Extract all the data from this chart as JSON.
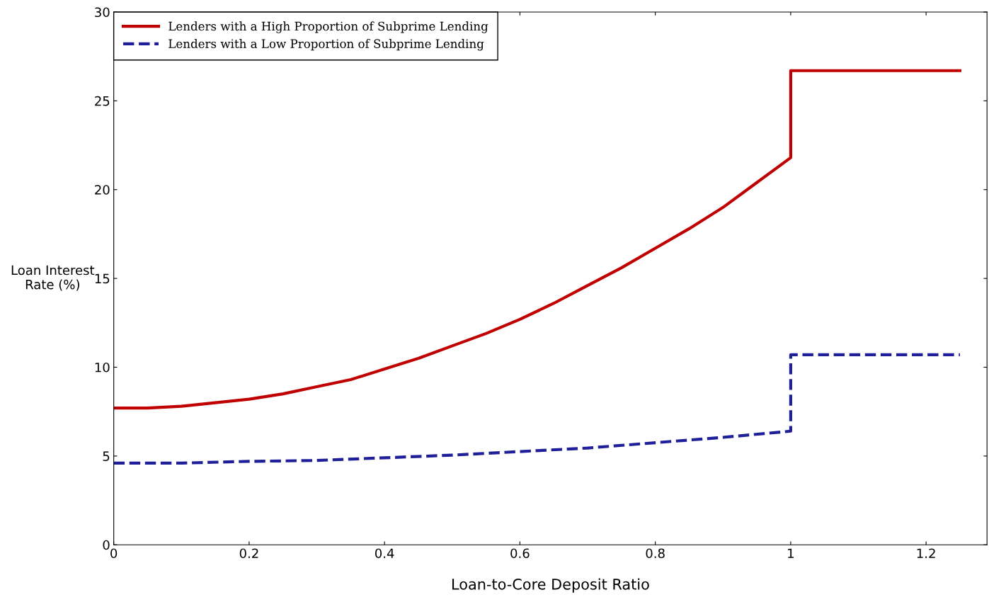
{
  "chart_data": {
    "type": "line",
    "xlabel": "Loan-to-Core Deposit Ratio",
    "ylabel": "Loan Interest\nRate (%)",
    "xlim": [
      0,
      1.29
    ],
    "xticks": [
      0,
      0.2,
      0.4,
      0.6,
      0.8,
      1,
      1.2
    ],
    "ylim": [
      0,
      30
    ],
    "yticks": [
      0,
      5,
      10,
      15,
      20,
      25,
      30
    ],
    "grid": false,
    "legend": "top left",
    "marker": "none",
    "series": [
      {
        "name": "Lenders with a High Proportion of Subprime Lending",
        "color": "#c00000",
        "line_style": "solid",
        "x": [
          0,
          0.05,
          0.1,
          0.15,
          0.2,
          0.25,
          0.3,
          0.35,
          0.4,
          0.45,
          0.5,
          0.55,
          0.6,
          0.65,
          0.7,
          0.75,
          0.8,
          0.85,
          0.9,
          0.95,
          1,
          1,
          1.25
        ],
        "values": [
          7.7,
          7.7,
          7.8,
          8.0,
          8.2,
          8.5,
          8.9,
          9.3,
          9.9,
          10.5,
          11.2,
          11.9,
          12.7,
          13.6,
          14.6,
          15.6,
          16.7,
          17.8,
          19.0,
          20.4,
          21.8,
          26.7,
          26.7
        ]
      },
      {
        "name": "Lenders with a Low Proportion of Subprime Lending",
        "color": "#1f1f9a",
        "line_style": "dashed",
        "x": [
          0,
          0.1,
          0.2,
          0.3,
          0.4,
          0.5,
          0.6,
          0.7,
          0.8,
          0.9,
          1,
          1,
          1.25
        ],
        "values": [
          4.6,
          4.6,
          4.7,
          4.75,
          4.9,
          5.05,
          5.25,
          5.45,
          5.75,
          6.05,
          6.4,
          10.7,
          10.7
        ]
      }
    ]
  }
}
